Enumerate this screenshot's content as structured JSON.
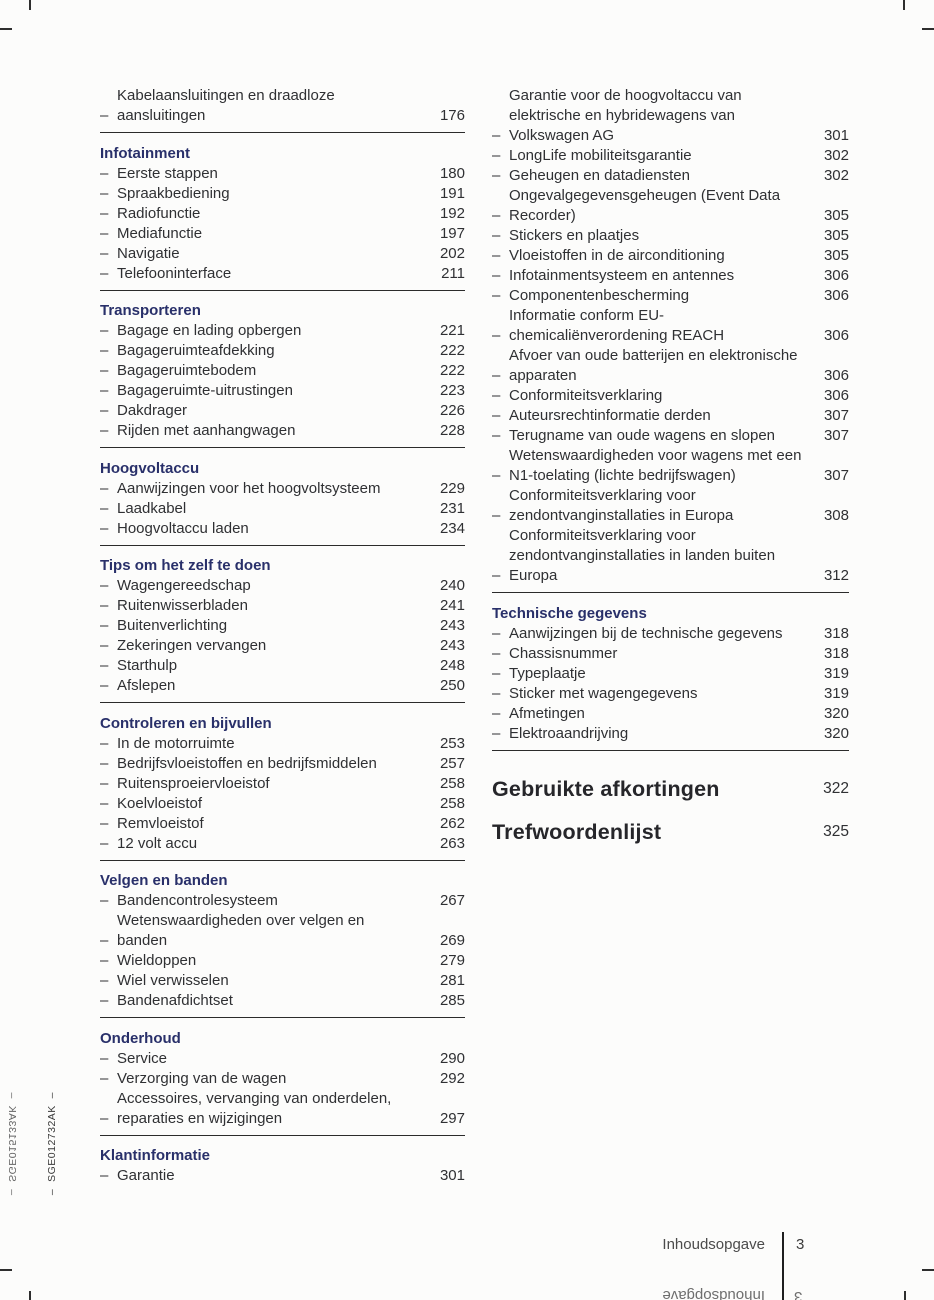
{
  "colors": {
    "heading_blue": "#29306a",
    "body_text": "#2f3033",
    "rule": "#2b2b2b",
    "footer_text": "#4b4b4b"
  },
  "toc": {
    "item_dash": "–",
    "left_sections": [
      {
        "heading": "",
        "items": [
          {
            "label": "Kabelaansluitingen en draadloze\naansluitingen",
            "page": "176"
          }
        ]
      },
      {
        "heading": "Infotainment",
        "items": [
          {
            "label": "Eerste stappen",
            "page": "180"
          },
          {
            "label": "Spraakbediening",
            "page": "191"
          },
          {
            "label": "Radiofunctie",
            "page": "192"
          },
          {
            "label": "Mediafunctie",
            "page": "197"
          },
          {
            "label": "Navigatie",
            "page": "202"
          },
          {
            "label": "Telefooninterface",
            "page": "211"
          }
        ]
      },
      {
        "heading": "Transporteren",
        "items": [
          {
            "label": "Bagage en lading opbergen",
            "page": "221"
          },
          {
            "label": "Bagageruimteafdekking",
            "page": "222"
          },
          {
            "label": "Bagageruimtebodem",
            "page": "222"
          },
          {
            "label": "Bagageruimte-uitrustingen",
            "page": "223"
          },
          {
            "label": "Dakdrager",
            "page": "226"
          },
          {
            "label": "Rijden met aanhangwagen",
            "page": "228"
          }
        ]
      },
      {
        "heading": "Hoogvoltaccu",
        "items": [
          {
            "label": "Aanwijzingen voor het hoogvoltsysteem",
            "page": "229"
          },
          {
            "label": "Laadkabel",
            "page": "231"
          },
          {
            "label": "Hoogvoltaccu laden",
            "page": "234"
          }
        ]
      },
      {
        "heading": "Tips om het zelf te doen",
        "items": [
          {
            "label": "Wagengereedschap",
            "page": "240"
          },
          {
            "label": "Ruitenwisserbladen",
            "page": "241"
          },
          {
            "label": "Buitenverlichting",
            "page": "243"
          },
          {
            "label": "Zekeringen vervangen",
            "page": "243"
          },
          {
            "label": "Starthulp",
            "page": "248"
          },
          {
            "label": "Afslepen",
            "page": "250"
          }
        ]
      },
      {
        "heading": "Controleren en bijvullen",
        "items": [
          {
            "label": "In de motorruimte",
            "page": "253"
          },
          {
            "label": "Bedrijfsvloeistoffen en bedrijfsmiddelen",
            "page": "257"
          },
          {
            "label": "Ruitensproeiervloeistof",
            "page": "258"
          },
          {
            "label": "Koelvloeistof",
            "page": "258"
          },
          {
            "label": "Remvloeistof",
            "page": "262"
          },
          {
            "label": "12 volt accu",
            "page": "263"
          }
        ]
      },
      {
        "heading": "Velgen en banden",
        "items": [
          {
            "label": "Bandencontrolesysteem",
            "page": "267"
          },
          {
            "label": "Wetenswaardigheden over velgen en\nbanden",
            "page": "269"
          },
          {
            "label": "Wieldoppen",
            "page": "279"
          },
          {
            "label": "Wiel verwisselen",
            "page": "281"
          },
          {
            "label": "Bandenafdichtset",
            "page": "285"
          }
        ]
      },
      {
        "heading": "Onderhoud",
        "items": [
          {
            "label": "Service",
            "page": "290"
          },
          {
            "label": "Verzorging van de wagen",
            "page": "292"
          },
          {
            "label": "Accessoires, vervanging van onderdelen,\nreparaties en wijzigingen",
            "page": "297"
          }
        ]
      },
      {
        "heading": "Klantinformatie",
        "rule": false,
        "items": [
          {
            "label": "Garantie",
            "page": "301"
          }
        ]
      }
    ],
    "right_sections": [
      {
        "heading": "",
        "items": [
          {
            "label": "Garantie voor de hoogvoltaccu van\nelektrische en hybridewagens van\nVolkswagen AG",
            "page": "301"
          },
          {
            "label": "LongLife mobiliteitsgarantie",
            "page": "302"
          },
          {
            "label": "Geheugen en datadiensten",
            "page": "302"
          },
          {
            "label": "Ongevalgegevensgeheugen (Event Data\nRecorder)",
            "page": "305"
          },
          {
            "label": "Stickers en plaatjes",
            "page": "305"
          },
          {
            "label": "Vloeistoffen in de airconditioning",
            "page": "305"
          },
          {
            "label": "Infotainmentsysteem en antennes",
            "page": "306"
          },
          {
            "label": "Componentenbescherming",
            "page": "306"
          },
          {
            "label": "Informatie conform EU-\nchemicaliënverordening REACH",
            "page": "306"
          },
          {
            "label": "Afvoer van oude batterijen en elektronische\napparaten",
            "page": "306"
          },
          {
            "label": "Conformiteitsverklaring",
            "page": "306"
          },
          {
            "label": "Auteursrechtinformatie derden",
            "page": "307"
          },
          {
            "label": "Terugname van oude wagens en slopen",
            "page": "307"
          },
          {
            "label": "Wetenswaardigheden voor wagens met een\nN1-toelating (lichte bedrijfswagen)",
            "page": "307"
          },
          {
            "label": "Conformiteitsverklaring voor\nzendontvanginstallaties in Europa",
            "page": "308"
          },
          {
            "label": "Conformiteitsverklaring voor\nzendontvanginstallaties in landen buiten\nEuropa",
            "page": "312"
          }
        ]
      },
      {
        "heading": "Technische gegevens",
        "items": [
          {
            "label": "Aanwijzingen bij de technische gegevens",
            "page": "318"
          },
          {
            "label": "Chassisnummer",
            "page": "318"
          },
          {
            "label": "Typeplaatje",
            "page": "319"
          },
          {
            "label": "Sticker met wagengegevens",
            "page": "319"
          },
          {
            "label": "Afmetingen",
            "page": "320"
          },
          {
            "label": "Elektroaandrijving",
            "page": "320"
          }
        ]
      }
    ],
    "chapters": [
      {
        "label": "Gebruikte afkortingen",
        "page": "322"
      },
      {
        "label": "Trefwoordenlijst",
        "page": "325"
      }
    ]
  },
  "footer": {
    "label": "Inhoudsopgave",
    "page": "3"
  },
  "showthrough_footer": {
    "label": "Inhoudsopgave",
    "page": "3"
  },
  "margin_codes": {
    "showthrough": "–  SGE015133AK  –",
    "printed": "–  SGE012732AK  –"
  }
}
